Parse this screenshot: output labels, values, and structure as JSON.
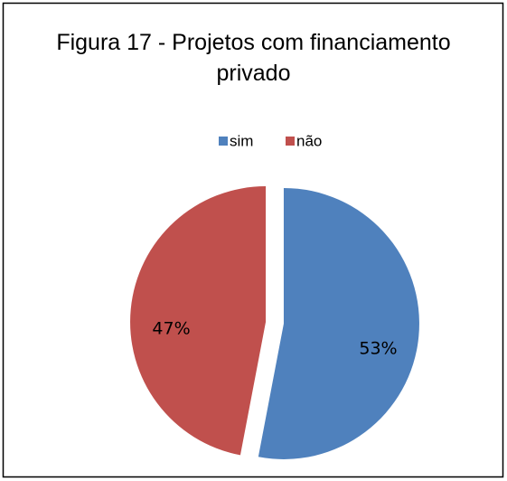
{
  "chart_data": {
    "type": "pie",
    "title": "Figura 17 - Projetos com financiamento privado",
    "categories": [
      "sim",
      "não"
    ],
    "values": [
      53,
      47
    ],
    "value_labels": [
      "53%",
      "47%"
    ],
    "colors": [
      "#4f81bd",
      "#c0504d"
    ],
    "legend": "top"
  }
}
